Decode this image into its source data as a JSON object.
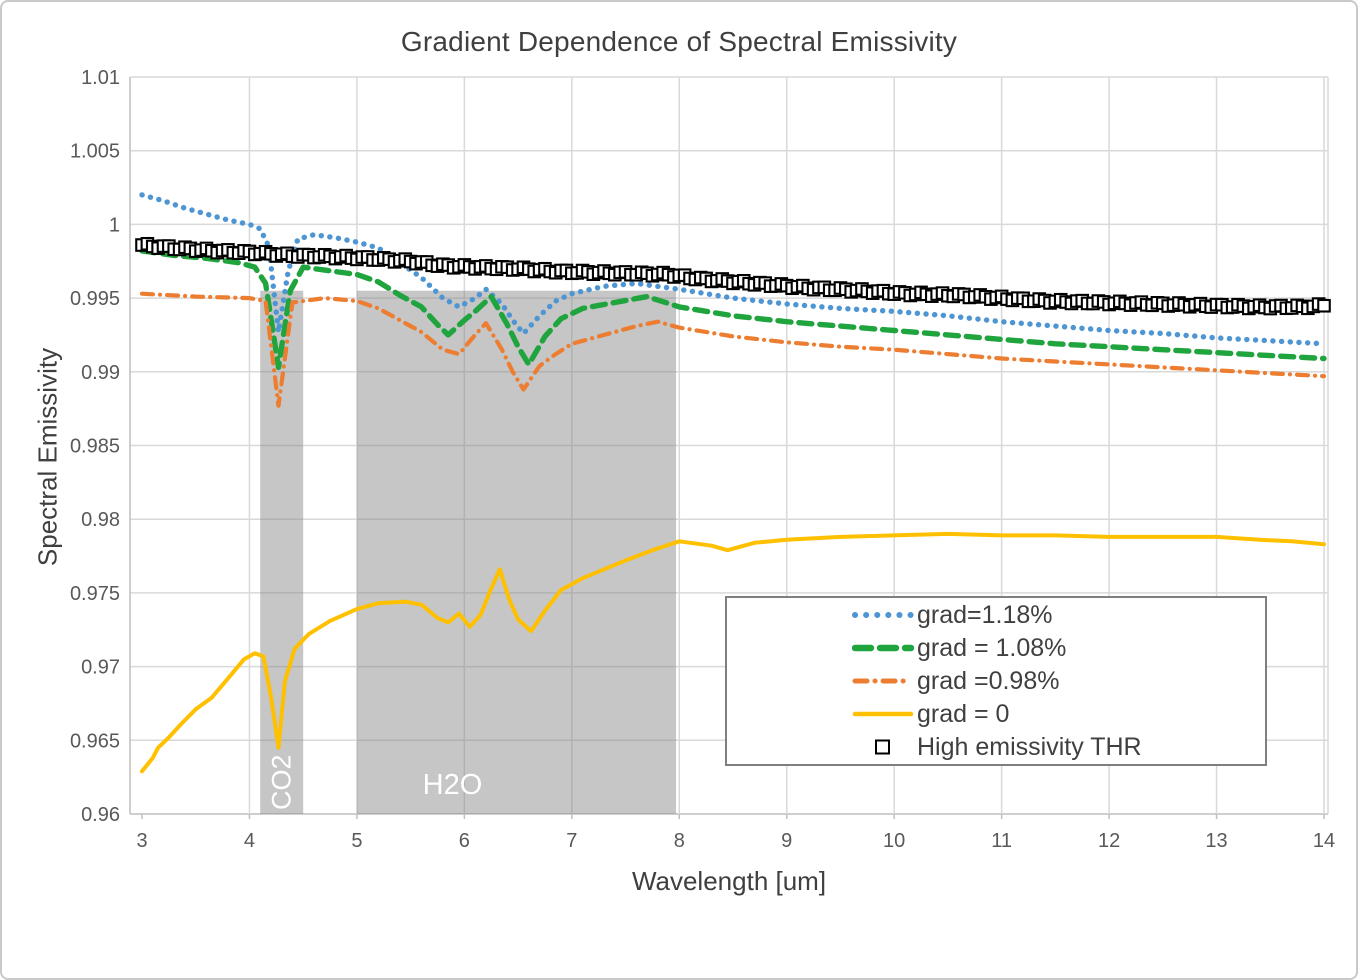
{
  "chart": {
    "title": "Gradient Dependence of Spectral Emissivity",
    "xlabel": "Wavelength [um]",
    "ylabel": "Spectral Emissivity"
  },
  "colors": {
    "background": "#FFFFFF",
    "gridline": "#D9D9D9",
    "axis_line": "#BFBFBF",
    "band_fill": "#808080",
    "band_opacity": 0.45,
    "band_label_text": "#FFFFFF",
    "title_text": "#3F3F3F",
    "tick_text": "#595959",
    "legend_border": "#7F7F7F",
    "series_blue": "#4E96D3",
    "series_green": "#20A43E",
    "series_orange": "#ED7D31",
    "series_yellow": "#FFC000",
    "series_black": "#000000"
  },
  "chart_data": {
    "type": "line",
    "title": "Gradient Dependence of Spectral Emissivity",
    "xlabel": "Wavelength [um]",
    "ylabel": "Spectral Emissivity",
    "xlim": [
      3,
      14
    ],
    "ylim": [
      0.96,
      1.01
    ],
    "grid": true,
    "legend_position": "inside-lower-right-box",
    "x_ticks": [
      "3",
      "4",
      "5",
      "6",
      "7",
      "8",
      "9",
      "10",
      "11",
      "12",
      "13",
      "14"
    ],
    "y_ticks": [
      "1.01",
      "1.005",
      "1",
      "0.995",
      "0.99",
      "0.985",
      "0.98",
      "0.975",
      "0.97",
      "0.965",
      "0.96"
    ],
    "bands": [
      {
        "label": "CO2",
        "x_from": 4.1,
        "x_to": 4.5,
        "y_top": 0.9955,
        "y_bottom": 0.96,
        "label_orientation": "vertical"
      },
      {
        "label": "H2O",
        "x_from": 5.0,
        "x_to": 7.97,
        "y_top": 0.9955,
        "y_bottom": 0.96,
        "label_orientation": "horizontal"
      }
    ],
    "series": [
      {
        "name": "grad=1.18%",
        "style": "dotted",
        "color": "#4E96D3",
        "points": [
          [
            3,
            1.002
          ],
          [
            3.2,
            1.0016
          ],
          [
            3.4,
            1.0011
          ],
          [
            3.6,
            1.0007
          ],
          [
            3.8,
            1.0003
          ],
          [
            4.0,
            1.0
          ],
          [
            4.1,
            0.9997
          ],
          [
            4.18,
            0.9985
          ],
          [
            4.27,
            0.9927
          ],
          [
            4.36,
            0.9968
          ],
          [
            4.45,
            0.999
          ],
          [
            4.6,
            0.9993
          ],
          [
            4.8,
            0.9991
          ],
          [
            5.0,
            0.9988
          ],
          [
            5.2,
            0.9984
          ],
          [
            5.4,
            0.9974
          ],
          [
            5.6,
            0.9964
          ],
          [
            5.8,
            0.995
          ],
          [
            5.95,
            0.9944
          ],
          [
            6.1,
            0.995
          ],
          [
            6.2,
            0.9956
          ],
          [
            6.35,
            0.9946
          ],
          [
            6.45,
            0.9935
          ],
          [
            6.55,
            0.9926
          ],
          [
            6.7,
            0.9938
          ],
          [
            6.85,
            0.9948
          ],
          [
            7.0,
            0.9953
          ],
          [
            7.3,
            0.9958
          ],
          [
            7.6,
            0.996
          ],
          [
            8.0,
            0.9956
          ],
          [
            8.5,
            0.995
          ],
          [
            9.0,
            0.9946
          ],
          [
            9.5,
            0.9943
          ],
          [
            10,
            0.9941
          ],
          [
            10.5,
            0.9938
          ],
          [
            11,
            0.9934
          ],
          [
            11.5,
            0.9931
          ],
          [
            12,
            0.9928
          ],
          [
            12.5,
            0.9926
          ],
          [
            13,
            0.9923
          ],
          [
            13.5,
            0.9921
          ],
          [
            14,
            0.9919
          ]
        ]
      },
      {
        "name": "grad = 1.08%",
        "style": "dashed",
        "color": "#20A43E",
        "points": [
          [
            3,
            0.9982
          ],
          [
            3.3,
            0.9979
          ],
          [
            3.6,
            0.9977
          ],
          [
            3.9,
            0.9974
          ],
          [
            4.05,
            0.9971
          ],
          [
            4.15,
            0.996
          ],
          [
            4.27,
            0.9903
          ],
          [
            4.38,
            0.9955
          ],
          [
            4.5,
            0.9971
          ],
          [
            4.7,
            0.9969
          ],
          [
            5.0,
            0.9966
          ],
          [
            5.2,
            0.9961
          ],
          [
            5.4,
            0.9952
          ],
          [
            5.6,
            0.9944
          ],
          [
            5.75,
            0.9932
          ],
          [
            5.85,
            0.9925
          ],
          [
            6.0,
            0.9935
          ],
          [
            6.1,
            0.9941
          ],
          [
            6.25,
            0.9951
          ],
          [
            6.4,
            0.9932
          ],
          [
            6.5,
            0.9917
          ],
          [
            6.6,
            0.9905
          ],
          [
            6.75,
            0.9924
          ],
          [
            6.9,
            0.9936
          ],
          [
            7.1,
            0.9943
          ],
          [
            7.4,
            0.9947
          ],
          [
            7.7,
            0.9951
          ],
          [
            8.0,
            0.9944
          ],
          [
            8.5,
            0.9938
          ],
          [
            9.0,
            0.9934
          ],
          [
            9.5,
            0.9931
          ],
          [
            10,
            0.9928
          ],
          [
            10.5,
            0.9925
          ],
          [
            11,
            0.9922
          ],
          [
            11.5,
            0.9919
          ],
          [
            12,
            0.9917
          ],
          [
            12.5,
            0.9915
          ],
          [
            13,
            0.9913
          ],
          [
            13.5,
            0.9911
          ],
          [
            14,
            0.9909
          ]
        ]
      },
      {
        "name": "grad =0.98%",
        "style": "dashdot",
        "color": "#ED7D31",
        "points": [
          [
            3,
            0.9953
          ],
          [
            3.5,
            0.9951
          ],
          [
            4.0,
            0.995
          ],
          [
            4.15,
            0.9948
          ],
          [
            4.27,
            0.9877
          ],
          [
            4.4,
            0.9947
          ],
          [
            4.7,
            0.995
          ],
          [
            5.0,
            0.9948
          ],
          [
            5.2,
            0.9943
          ],
          [
            5.4,
            0.9935
          ],
          [
            5.6,
            0.9927
          ],
          [
            5.8,
            0.9915
          ],
          [
            5.95,
            0.9912
          ],
          [
            6.1,
            0.9925
          ],
          [
            6.2,
            0.9933
          ],
          [
            6.35,
            0.9915
          ],
          [
            6.45,
            0.99
          ],
          [
            6.55,
            0.9888
          ],
          [
            6.7,
            0.9904
          ],
          [
            6.85,
            0.9912
          ],
          [
            7.0,
            0.9919
          ],
          [
            7.3,
            0.9925
          ],
          [
            7.6,
            0.9931
          ],
          [
            7.8,
            0.9934
          ],
          [
            8.0,
            0.993
          ],
          [
            8.5,
            0.9924
          ],
          [
            9.0,
            0.992
          ],
          [
            9.5,
            0.9917
          ],
          [
            10,
            0.9915
          ],
          [
            10.5,
            0.9912
          ],
          [
            11,
            0.9909
          ],
          [
            11.5,
            0.9907
          ],
          [
            12,
            0.9905
          ],
          [
            12.5,
            0.9903
          ],
          [
            13,
            0.9901
          ],
          [
            13.5,
            0.9899
          ],
          [
            14,
            0.9897
          ]
        ]
      },
      {
        "name": "grad = 0",
        "style": "solid",
        "color": "#FFC000",
        "points": [
          [
            3,
            0.9629
          ],
          [
            3.1,
            0.9638
          ],
          [
            3.15,
            0.9645
          ],
          [
            3.25,
            0.9652
          ],
          [
            3.35,
            0.966
          ],
          [
            3.5,
            0.9671
          ],
          [
            3.65,
            0.9679
          ],
          [
            3.8,
            0.9692
          ],
          [
            3.95,
            0.9705
          ],
          [
            4.05,
            0.9709
          ],
          [
            4.13,
            0.9707
          ],
          [
            4.2,
            0.968
          ],
          [
            4.27,
            0.9645
          ],
          [
            4.33,
            0.969
          ],
          [
            4.42,
            0.9712
          ],
          [
            4.55,
            0.9722
          ],
          [
            4.75,
            0.9731
          ],
          [
            5.0,
            0.9739
          ],
          [
            5.2,
            0.9743
          ],
          [
            5.45,
            0.9744
          ],
          [
            5.6,
            0.9742
          ],
          [
            5.75,
            0.9733
          ],
          [
            5.85,
            0.973
          ],
          [
            5.95,
            0.9736
          ],
          [
            6.05,
            0.9727
          ],
          [
            6.15,
            0.9735
          ],
          [
            6.25,
            0.9753
          ],
          [
            6.33,
            0.9766
          ],
          [
            6.42,
            0.9745
          ],
          [
            6.5,
            0.9732
          ],
          [
            6.62,
            0.9724
          ],
          [
            6.75,
            0.9738
          ],
          [
            6.9,
            0.9752
          ],
          [
            7.1,
            0.976
          ],
          [
            7.3,
            0.9766
          ],
          [
            7.5,
            0.9772
          ],
          [
            7.75,
            0.9779
          ],
          [
            8.0,
            0.9785
          ],
          [
            8.3,
            0.9782
          ],
          [
            8.45,
            0.9779
          ],
          [
            8.7,
            0.9784
          ],
          [
            9.0,
            0.9786
          ],
          [
            9.5,
            0.9788
          ],
          [
            10,
            0.9789
          ],
          [
            10.5,
            0.979
          ],
          [
            11,
            0.9789
          ],
          [
            11.5,
            0.9789
          ],
          [
            12,
            0.9788
          ],
          [
            12.5,
            0.9788
          ],
          [
            13,
            0.9788
          ],
          [
            13.4,
            0.9786
          ],
          [
            13.7,
            0.9785
          ],
          [
            14,
            0.9783
          ]
        ]
      },
      {
        "name": "High emissivity THR",
        "style": "square-markers",
        "color": "#000000",
        "points": [
          [
            3.0,
            0.9986
          ],
          [
            3.3,
            0.9984
          ],
          [
            3.7,
            0.9982
          ],
          [
            4.0,
            0.9981
          ],
          [
            4.4,
            0.9979
          ],
          [
            4.8,
            0.9978
          ],
          [
            5.1,
            0.9977
          ],
          [
            5.5,
            0.9975
          ],
          [
            5.8,
            0.9972
          ],
          [
            6.1,
            0.9971
          ],
          [
            6.5,
            0.997
          ],
          [
            6.9,
            0.9968
          ],
          [
            7.4,
            0.9967
          ],
          [
            7.9,
            0.9966
          ],
          [
            8.2,
            0.9963
          ],
          [
            8.7,
            0.996
          ],
          [
            9.2,
            0.9957
          ],
          [
            9.7,
            0.9955
          ],
          [
            10.1,
            0.9953
          ],
          [
            10.6,
            0.9952
          ],
          [
            11.0,
            0.995
          ],
          [
            11.4,
            0.9948
          ],
          [
            11.9,
            0.9947
          ],
          [
            12.4,
            0.9946
          ],
          [
            12.9,
            0.9945
          ],
          [
            13.4,
            0.9944
          ],
          [
            13.8,
            0.9944
          ],
          [
            14.0,
            0.9945
          ]
        ]
      }
    ]
  }
}
